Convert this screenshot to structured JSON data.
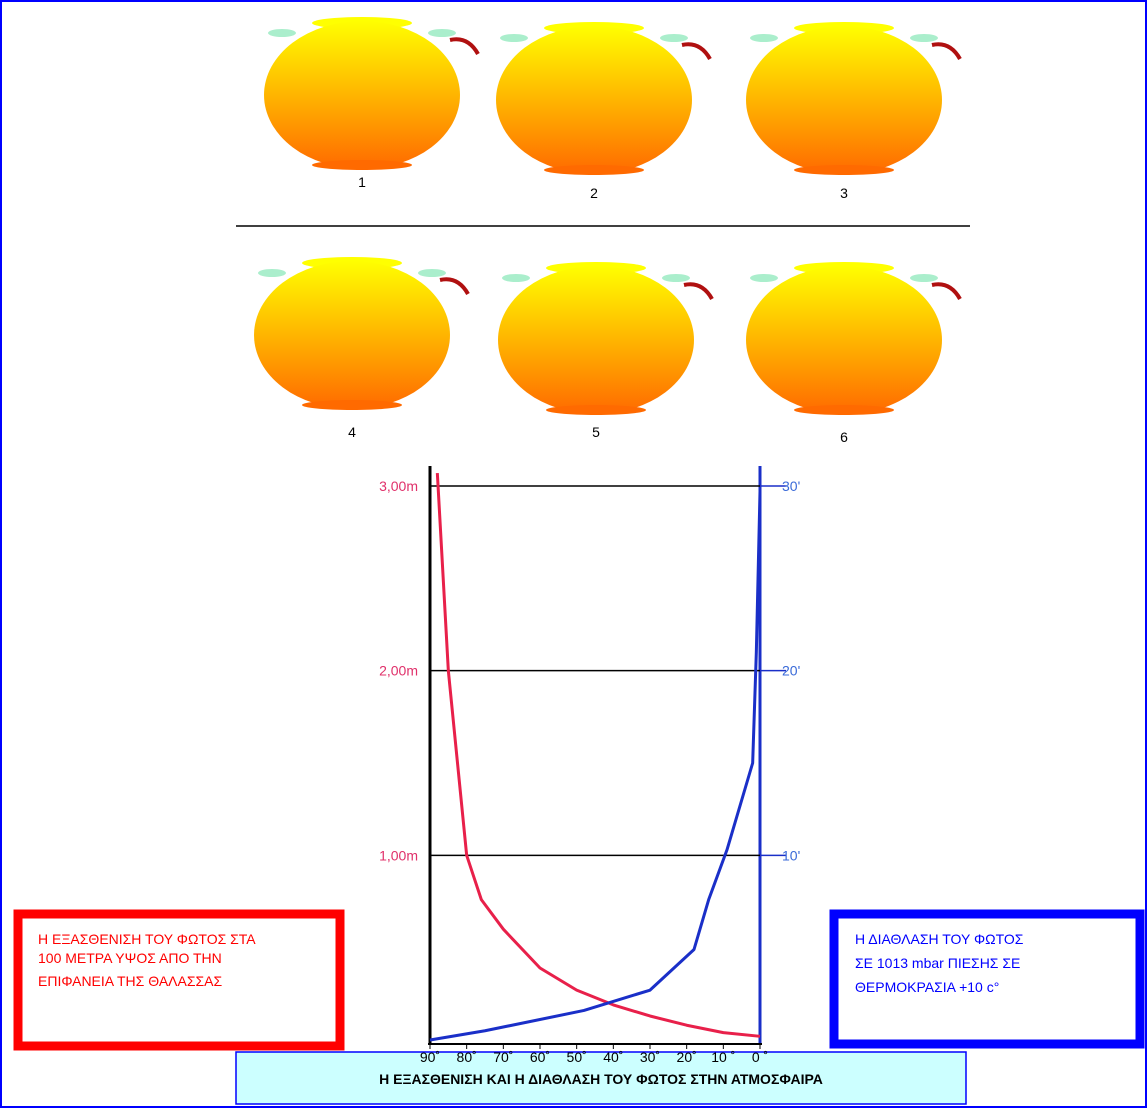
{
  "suns": [
    {
      "label": "1"
    },
    {
      "label": "2"
    },
    {
      "label": "3"
    },
    {
      "label": "4"
    },
    {
      "label": "5"
    },
    {
      "label": "6"
    }
  ],
  "red_box": {
    "lines": [
      "Η ΕΞΑΣΘΕΝΙΣΗ ΤΟΥ ΦΩΤΟΣ ΣΤΑ",
      "100 ΜΕΤΡΑ ΥΨΟΣ ΑΠΟ ΤΗΝ",
      "ΕΠΙΦΑΝΕΙΑ ΤΗΣ ΘΑΛΑΣΣΑΣ"
    ]
  },
  "blue_box": {
    "lines": [
      "Η ΔΙΑΘΛΑΣΗ ΤΟΥ ΦΩΤΟΣ",
      "ΣΕ 1013 mbar ΠΙΕΣΗΣ ΣΕ",
      "ΘΕΡΜΟΚΡΑΣΙΑ +10 c°"
    ]
  },
  "caption": "Η ΕΞΑΣΘΕΝΙΣΗ ΚΑΙ Η ΔΙΑΘΛΑΣΗ ΤΟΥ ΦΩΤΟΣ ΣΤΗΝ ΑΤΜΟΣΦΑΙΡΑ",
  "chart_data": {
    "type": "line",
    "xlim": [
      90,
      0
    ],
    "xticks": [
      {
        "value": 90,
        "label": "90˚"
      },
      {
        "value": 80,
        "label": "80˚"
      },
      {
        "value": 70,
        "label": "70˚"
      },
      {
        "value": 60,
        "label": "60˚"
      },
      {
        "value": 50,
        "label": "50˚"
      },
      {
        "value": 40,
        "label": "40˚"
      },
      {
        "value": 30,
        "label": "30˚"
      },
      {
        "value": 20,
        "label": "20˚"
      },
      {
        "value": 10,
        "label": "10 ˚"
      },
      {
        "value": 0,
        "label": "0 ˚"
      }
    ],
    "ylim": [
      0,
      3
    ],
    "yticks": [
      {
        "value": 1,
        "label": "1,00m"
      },
      {
        "value": 2,
        "label": "2,00m"
      },
      {
        "value": 3,
        "label": "3,00m"
      }
    ],
    "y2lim": [
      0,
      30
    ],
    "y2ticks": [
      {
        "value": 10,
        "label": "10'"
      },
      {
        "value": 20,
        "label": "20'"
      },
      {
        "value": 30,
        "label": "30'"
      }
    ],
    "grid": true,
    "series": [
      {
        "color": "#e8204a",
        "axis": "y",
        "x": [
          88,
          85,
          80,
          76,
          70,
          60,
          50,
          40,
          30,
          20,
          10,
          0
        ],
        "values": [
          3.07,
          2.0,
          1.0,
          0.76,
          0.6,
          0.39,
          0.27,
          0.19,
          0.13,
          0.08,
          0.04,
          0.02
        ]
      },
      {
        "color": "#1a2fc8",
        "axis": "y2",
        "x": [
          0,
          1,
          2,
          9,
          14,
          18,
          30,
          48,
          75,
          90
        ],
        "values": [
          29.7,
          21,
          15,
          10.3,
          7.6,
          4.9,
          2.7,
          1.6,
          0.5,
          0
        ]
      }
    ]
  }
}
